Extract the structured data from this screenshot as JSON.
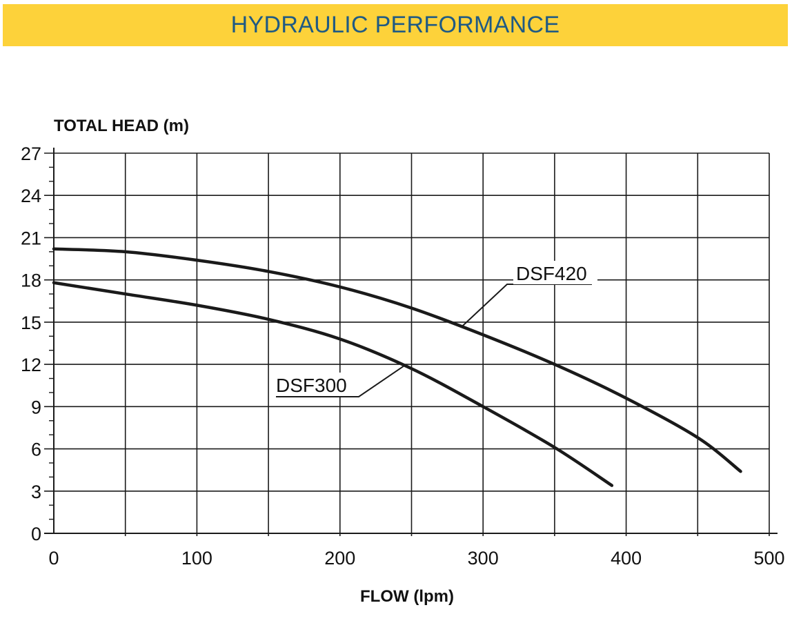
{
  "header": {
    "title": "HYDRAULIC PERFORMANCE"
  },
  "colors": {
    "banner": "#fdd23a",
    "title_text": "#1f5a84",
    "curve": "#1a1a1a",
    "grid": "#1a1a1a"
  },
  "chart_data": {
    "type": "line",
    "title": "",
    "xlabel": "FLOW (lpm)",
    "ylabel": "TOTAL HEAD (m)",
    "xlim": [
      0,
      500
    ],
    "ylim": [
      0,
      27
    ],
    "x_ticks": [
      0,
      100,
      200,
      300,
      400,
      500
    ],
    "y_ticks": [
      0,
      3,
      6,
      9,
      12,
      15,
      18,
      21,
      24,
      27
    ],
    "grid": true,
    "series": [
      {
        "name": "DSF420",
        "x": [
          0,
          50,
          100,
          150,
          200,
          250,
          300,
          350,
          400,
          450,
          480
        ],
        "y": [
          20.2,
          20.0,
          19.4,
          18.6,
          17.5,
          16.0,
          14.1,
          12.0,
          9.6,
          6.8,
          4.4
        ]
      },
      {
        "name": "DSF300",
        "x": [
          0,
          50,
          100,
          150,
          200,
          250,
          300,
          350,
          390
        ],
        "y": [
          17.8,
          17.0,
          16.2,
          15.2,
          13.8,
          11.7,
          9.0,
          6.1,
          3.4
        ]
      }
    ]
  }
}
